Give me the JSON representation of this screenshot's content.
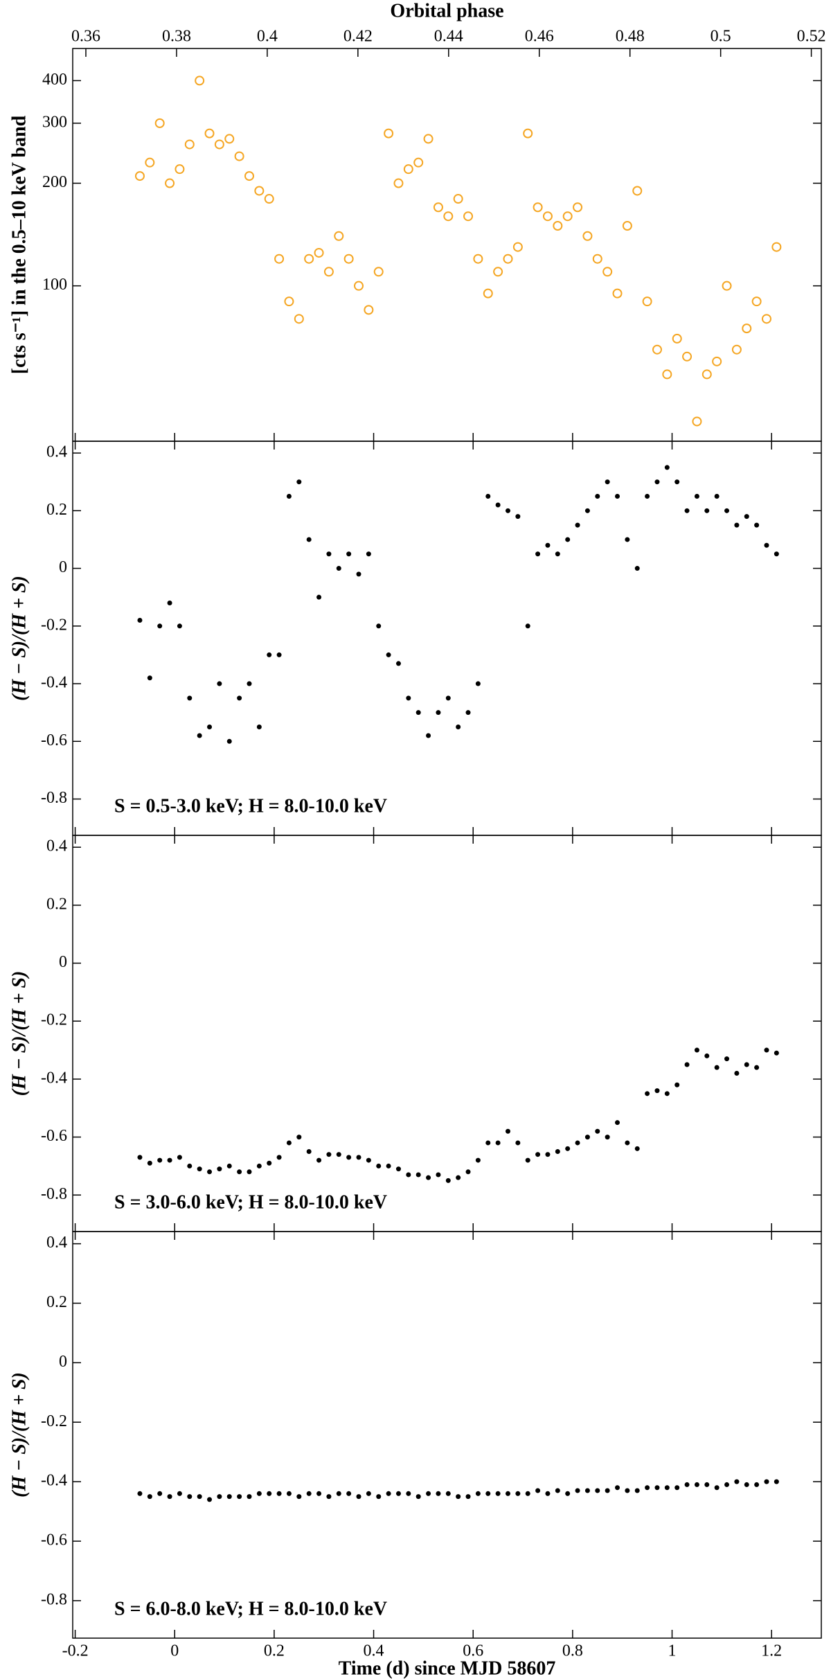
{
  "chart_data": [
    {
      "type": "scatter",
      "x2label": "Orbital phase",
      "x2lim": [
        0.3571,
        0.5222
      ],
      "x2ticks": [
        0.36,
        0.38,
        0.4,
        0.42,
        0.44,
        0.46,
        0.48,
        0.5,
        0.52
      ],
      "ylabel": "[cts s⁻¹] in the 0.5–10 keV band",
      "ylog": true,
      "ylim": [
        35,
        497
      ],
      "yticks": [
        100,
        200,
        300,
        400
      ],
      "xlim": [
        -0.205,
        1.3
      ],
      "xticks": [
        -0.2,
        0,
        0.2,
        0.4,
        0.6,
        0.8,
        1,
        1.2
      ],
      "color": "#f5a623",
      "marker": "ring",
      "x": [
        -0.07,
        -0.05,
        -0.03,
        -0.01,
        0.01,
        0.03,
        0.05,
        0.07,
        0.09,
        0.11,
        0.13,
        0.15,
        0.17,
        0.19,
        0.21,
        0.23,
        0.25,
        0.27,
        0.29,
        0.31,
        0.33,
        0.35,
        0.37,
        0.39,
        0.41,
        0.43,
        0.45,
        0.47,
        0.49,
        0.51,
        0.53,
        0.55,
        0.57,
        0.59,
        0.61,
        0.63,
        0.65,
        0.67,
        0.69,
        0.71,
        0.73,
        0.75,
        0.77,
        0.79,
        0.81,
        0.83,
        0.85,
        0.87,
        0.89,
        0.91,
        0.93,
        0.95,
        0.97,
        0.99,
        1.01,
        1.03,
        1.05,
        1.07,
        1.09,
        1.11,
        1.13,
        1.15,
        1.17,
        1.19,
        1.21
      ],
      "values": [
        210,
        230,
        300,
        200,
        220,
        260,
        400,
        280,
        260,
        270,
        240,
        210,
        190,
        180,
        120,
        90,
        80,
        120,
        125,
        110,
        140,
        120,
        100,
        85,
        110,
        280,
        200,
        220,
        230,
        270,
        170,
        160,
        180,
        160,
        120,
        95,
        110,
        120,
        130,
        280,
        170,
        160,
        150,
        160,
        170,
        140,
        120,
        110,
        95,
        150,
        190,
        90,
        65,
        55,
        70,
        62,
        40,
        55,
        60,
        100,
        65,
        75,
        90,
        80,
        130
      ]
    },
    {
      "type": "scatter",
      "ylabel": "(H − S)/(H + S)",
      "annotation": "S = 0.5-3.0 keV; H = 8.0-10.0 keV",
      "ylim": [
        -0.926,
        0.441
      ],
      "yticks": [
        0.4,
        0.2,
        0,
        -0.2,
        -0.4,
        -0.6,
        -0.8
      ],
      "xlim": [
        -0.205,
        1.3
      ],
      "xticks": [
        -0.2,
        0,
        0.2,
        0.4,
        0.6,
        0.8,
        1,
        1.2
      ],
      "color": "#000000",
      "marker": "dot",
      "x": [
        -0.07,
        -0.05,
        -0.03,
        -0.01,
        0.01,
        0.03,
        0.05,
        0.07,
        0.09,
        0.11,
        0.13,
        0.15,
        0.17,
        0.19,
        0.21,
        0.23,
        0.25,
        0.27,
        0.29,
        0.31,
        0.33,
        0.35,
        0.37,
        0.39,
        0.41,
        0.43,
        0.45,
        0.47,
        0.49,
        0.51,
        0.53,
        0.55,
        0.57,
        0.59,
        0.61,
        0.63,
        0.65,
        0.67,
        0.69,
        0.71,
        0.73,
        0.75,
        0.77,
        0.79,
        0.81,
        0.83,
        0.85,
        0.87,
        0.89,
        0.91,
        0.93,
        0.95,
        0.97,
        0.99,
        1.01,
        1.03,
        1.05,
        1.07,
        1.09,
        1.11,
        1.13,
        1.15,
        1.17,
        1.19,
        1.21
      ],
      "values": [
        -0.18,
        -0.38,
        -0.2,
        -0.12,
        -0.2,
        -0.45,
        -0.58,
        -0.55,
        -0.4,
        -0.6,
        -0.45,
        -0.4,
        -0.55,
        -0.3,
        -0.3,
        0.25,
        0.3,
        0.1,
        -0.1,
        0.05,
        0.0,
        0.05,
        -0.02,
        0.05,
        -0.2,
        -0.3,
        -0.33,
        -0.45,
        -0.5,
        -0.58,
        -0.5,
        -0.45,
        -0.55,
        -0.5,
        -0.4,
        0.25,
        0.22,
        0.2,
        0.18,
        -0.2,
        0.05,
        0.08,
        0.05,
        0.1,
        0.15,
        0.2,
        0.25,
        0.3,
        0.25,
        0.1,
        0.0,
        0.25,
        0.3,
        0.35,
        0.3,
        0.2,
        0.25,
        0.2,
        0.25,
        0.2,
        0.15,
        0.18,
        0.15,
        0.08,
        0.05
      ]
    },
    {
      "type": "scatter",
      "ylabel": "(H − S)/(H + S)",
      "annotation": "S = 3.0-6.0 keV; H = 8.0-10.0 keV",
      "ylim": [
        -0.926,
        0.441
      ],
      "yticks": [
        0.4,
        0.2,
        0,
        -0.2,
        -0.4,
        -0.6,
        -0.8
      ],
      "xlim": [
        -0.205,
        1.3
      ],
      "xticks": [
        -0.2,
        0,
        0.2,
        0.4,
        0.6,
        0.8,
        1,
        1.2
      ],
      "color": "#000000",
      "marker": "dot",
      "x": [
        -0.07,
        -0.05,
        -0.03,
        -0.01,
        0.01,
        0.03,
        0.05,
        0.07,
        0.09,
        0.11,
        0.13,
        0.15,
        0.17,
        0.19,
        0.21,
        0.23,
        0.25,
        0.27,
        0.29,
        0.31,
        0.33,
        0.35,
        0.37,
        0.39,
        0.41,
        0.43,
        0.45,
        0.47,
        0.49,
        0.51,
        0.53,
        0.55,
        0.57,
        0.59,
        0.61,
        0.63,
        0.65,
        0.67,
        0.69,
        0.71,
        0.73,
        0.75,
        0.77,
        0.79,
        0.81,
        0.83,
        0.85,
        0.87,
        0.89,
        0.91,
        0.93,
        0.95,
        0.97,
        0.99,
        1.01,
        1.03,
        1.05,
        1.07,
        1.09,
        1.11,
        1.13,
        1.15,
        1.17,
        1.19,
        1.21
      ],
      "values": [
        -0.67,
        -0.69,
        -0.68,
        -0.68,
        -0.67,
        -0.7,
        -0.71,
        -0.72,
        -0.71,
        -0.7,
        -0.72,
        -0.72,
        -0.7,
        -0.69,
        -0.67,
        -0.62,
        -0.6,
        -0.65,
        -0.68,
        -0.66,
        -0.66,
        -0.67,
        -0.67,
        -0.68,
        -0.7,
        -0.7,
        -0.71,
        -0.73,
        -0.73,
        -0.74,
        -0.73,
        -0.75,
        -0.74,
        -0.72,
        -0.68,
        -0.62,
        -0.62,
        -0.58,
        -0.62,
        -0.68,
        -0.66,
        -0.66,
        -0.65,
        -0.64,
        -0.62,
        -0.6,
        -0.58,
        -0.6,
        -0.55,
        -0.62,
        -0.64,
        -0.45,
        -0.44,
        -0.45,
        -0.42,
        -0.35,
        -0.3,
        -0.32,
        -0.36,
        -0.33,
        -0.38,
        -0.35,
        -0.36,
        -0.3,
        -0.31
      ]
    },
    {
      "type": "scatter",
      "ylabel": "(H − S)/(H + S)",
      "annotation": "S = 6.0-8.0 keV; H = 8.0-10.0 keV",
      "xlabel": "Time (d) since MJD 58607",
      "ylim": [
        -0.926,
        0.441
      ],
      "yticks": [
        0.4,
        0.2,
        0,
        -0.2,
        -0.4,
        -0.6,
        -0.8
      ],
      "xlim": [
        -0.205,
        1.3
      ],
      "xticks": [
        -0.2,
        0,
        0.2,
        0.4,
        0.6,
        0.8,
        1,
        1.2
      ],
      "color": "#000000",
      "marker": "dot",
      "x": [
        -0.07,
        -0.05,
        -0.03,
        -0.01,
        0.01,
        0.03,
        0.05,
        0.07,
        0.09,
        0.11,
        0.13,
        0.15,
        0.17,
        0.19,
        0.21,
        0.23,
        0.25,
        0.27,
        0.29,
        0.31,
        0.33,
        0.35,
        0.37,
        0.39,
        0.41,
        0.43,
        0.45,
        0.47,
        0.49,
        0.51,
        0.53,
        0.55,
        0.57,
        0.59,
        0.61,
        0.63,
        0.65,
        0.67,
        0.69,
        0.71,
        0.73,
        0.75,
        0.77,
        0.79,
        0.81,
        0.83,
        0.85,
        0.87,
        0.89,
        0.91,
        0.93,
        0.95,
        0.97,
        0.99,
        1.01,
        1.03,
        1.05,
        1.07,
        1.09,
        1.11,
        1.13,
        1.15,
        1.17,
        1.19,
        1.21
      ],
      "values": [
        -0.44,
        -0.45,
        -0.44,
        -0.45,
        -0.44,
        -0.45,
        -0.45,
        -0.46,
        -0.45,
        -0.45,
        -0.45,
        -0.45,
        -0.44,
        -0.44,
        -0.44,
        -0.44,
        -0.45,
        -0.44,
        -0.44,
        -0.45,
        -0.44,
        -0.44,
        -0.45,
        -0.44,
        -0.45,
        -0.44,
        -0.44,
        -0.44,
        -0.45,
        -0.44,
        -0.44,
        -0.44,
        -0.45,
        -0.45,
        -0.44,
        -0.44,
        -0.44,
        -0.44,
        -0.44,
        -0.44,
        -0.43,
        -0.44,
        -0.43,
        -0.44,
        -0.43,
        -0.43,
        -0.43,
        -0.43,
        -0.42,
        -0.43,
        -0.43,
        -0.42,
        -0.42,
        -0.42,
        -0.42,
        -0.41,
        -0.41,
        -0.41,
        -0.42,
        -0.41,
        -0.4,
        -0.41,
        -0.41,
        -0.4,
        -0.4
      ]
    }
  ]
}
